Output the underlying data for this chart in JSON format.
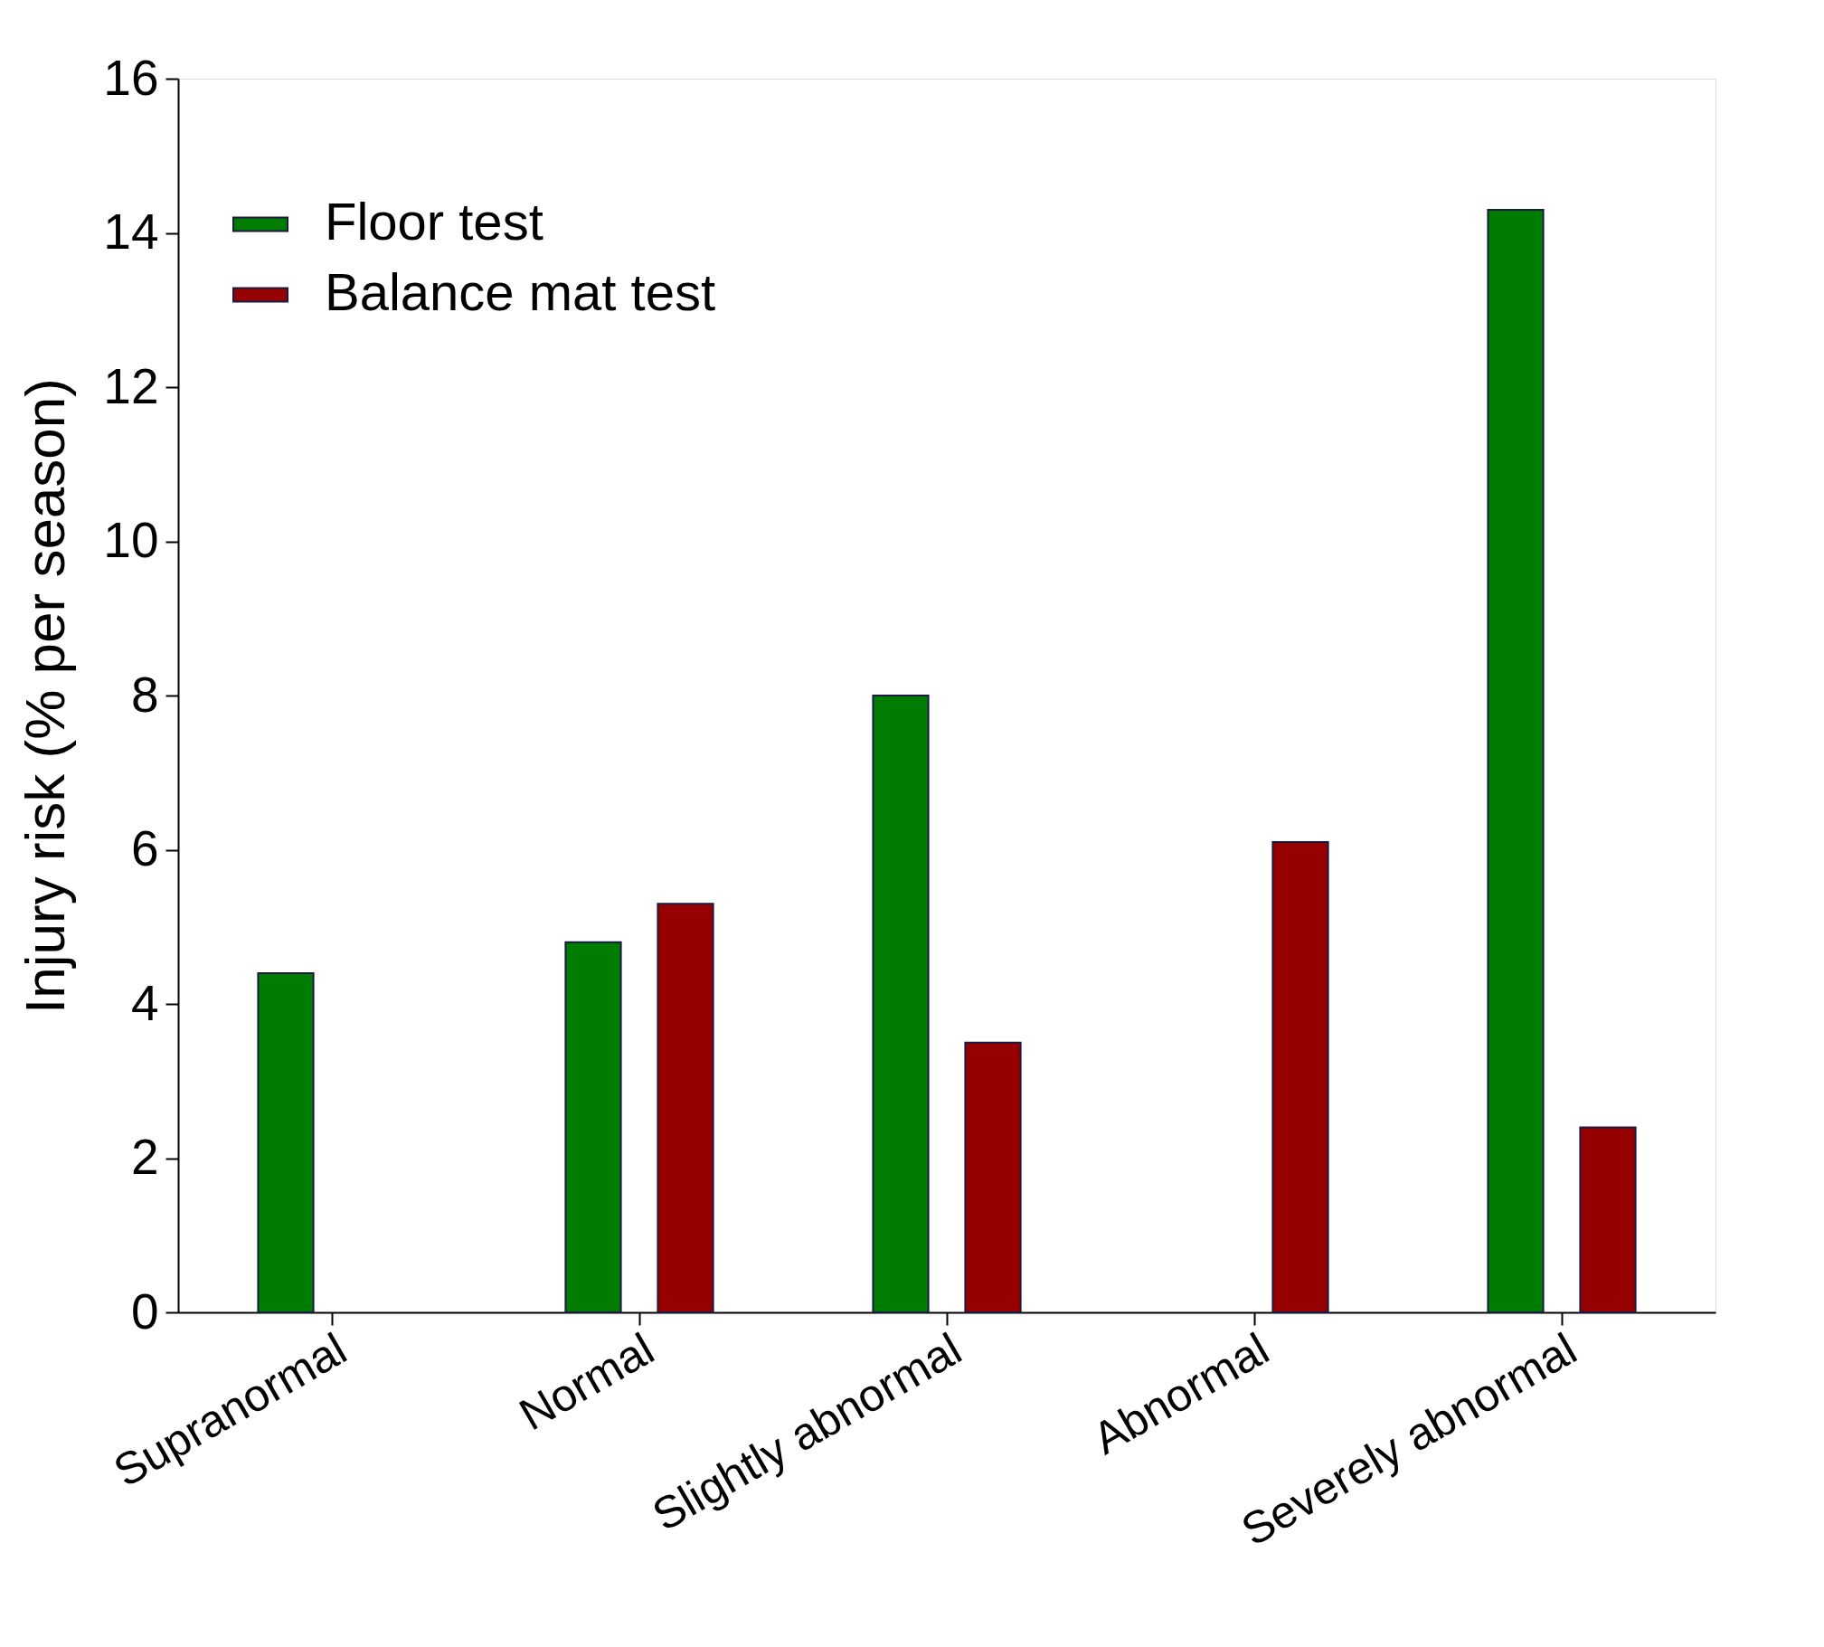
{
  "chart_data": {
    "type": "bar",
    "ylabel": "Injury risk (% per season)",
    "categories": [
      "Supranormal",
      "Normal",
      "Slightly abnormal",
      "Abnormal",
      "Severely abnormal"
    ],
    "series": [
      {
        "name": "Floor test",
        "color": "#007c00",
        "values": [
          4.4,
          4.8,
          8.0,
          null,
          14.3
        ]
      },
      {
        "name": "Balance mat test",
        "color": "#970000",
        "values": [
          null,
          5.3,
          3.5,
          6.1,
          2.4
        ]
      }
    ],
    "ylim": [
      0,
      16
    ],
    "yticks": [
      0,
      2,
      4,
      6,
      8,
      10,
      12,
      14,
      16
    ],
    "grid": false,
    "legend": "top left"
  }
}
